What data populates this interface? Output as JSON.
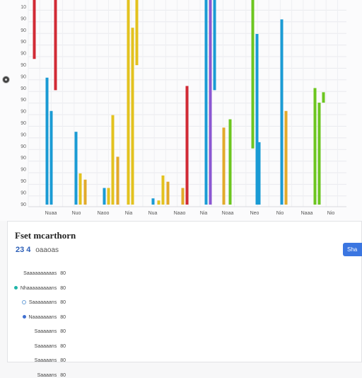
{
  "chart_data": {
    "type": "bar",
    "grid": true,
    "ylim": [
      0,
      10
    ],
    "ytick_labels": [
      "10",
      "90",
      "90",
      "90",
      "90",
      "90",
      "90",
      "90",
      "90",
      "90",
      "90",
      "90",
      "90",
      "90",
      "90",
      "90",
      "90",
      "90"
    ],
    "categories": [
      "Nuaa",
      "Nuo",
      "Naoo",
      "Nia",
      "Nua",
      "Naao",
      "Nia",
      "Noaa",
      "Neo",
      "Nio",
      "Naaa",
      "Nio"
    ],
    "bars": [
      {
        "x": 48.5,
        "top": 10,
        "bottom": 7.1,
        "color": "#d12a35"
      },
      {
        "x": 66.5,
        "top": 6.2,
        "bottom": 0.1,
        "color": "#1a9bd4"
      },
      {
        "x": 72.5,
        "top": 4.6,
        "bottom": 0.1,
        "color": "#1a9bd4"
      },
      {
        "x": 78.5,
        "top": 10,
        "bottom": 5.6,
        "color": "#d12a35"
      },
      {
        "x": 107.5,
        "top": 3.6,
        "bottom": 0.1,
        "color": "#1a9bd4"
      },
      {
        "x": 113.5,
        "top": 1.6,
        "bottom": 0.1,
        "color": "#e3c21e"
      },
      {
        "x": 120.5,
        "top": 1.3,
        "bottom": 0.1,
        "color": "#e2aa2a"
      },
      {
        "x": 147.5,
        "top": 0.9,
        "bottom": 0.1,
        "color": "#1a9bd4"
      },
      {
        "x": 153.5,
        "top": 0.9,
        "bottom": 0.1,
        "color": "#e3c21e"
      },
      {
        "x": 159.5,
        "top": 4.4,
        "bottom": 0.1,
        "color": "#e3c21e"
      },
      {
        "x": 166.5,
        "top": 2.4,
        "bottom": 0.1,
        "color": "#e2aa2a"
      },
      {
        "x": 181.5,
        "top": 10,
        "bottom": 0.1,
        "color": "#e3c21e"
      },
      {
        "x": 187.5,
        "top": 8.6,
        "bottom": 0.1,
        "color": "#e3c21e"
      },
      {
        "x": 193.5,
        "top": 10,
        "bottom": 6.8,
        "color": "#e3c21e"
      },
      {
        "x": 216.5,
        "top": 0.4,
        "bottom": 0.1,
        "color": "#1a9bd4"
      },
      {
        "x": 224.5,
        "top": 0.3,
        "bottom": 0.1,
        "color": "#e3c21e"
      },
      {
        "x": 230.5,
        "top": 1.5,
        "bottom": 0.1,
        "color": "#e3c21e"
      },
      {
        "x": 237.5,
        "top": 1.2,
        "bottom": 0.1,
        "color": "#e2aa2a"
      },
      {
        "x": 258.5,
        "top": 0.9,
        "bottom": 0.1,
        "color": "#e2aa2a"
      },
      {
        "x": 264.5,
        "top": 5.8,
        "bottom": 0.1,
        "color": "#d12a35"
      },
      {
        "x": 291.5,
        "top": 10,
        "bottom": 0.1,
        "color": "#1a9bd4"
      },
      {
        "x": 297.5,
        "top": 10,
        "bottom": 0.1,
        "color": "#8b57d2"
      },
      {
        "x": 303.5,
        "top": 10,
        "bottom": 5.6,
        "color": "#1a9bd4"
      },
      {
        "x": 316.5,
        "top": 3.8,
        "bottom": 0.1,
        "color": "#e2aa2a"
      },
      {
        "x": 325.5,
        "top": 4.2,
        "bottom": 0.1,
        "color": "#6cc620"
      },
      {
        "x": 357.5,
        "top": 10,
        "bottom": 2.8,
        "color": "#6cc620"
      },
      {
        "x": 363.5,
        "top": 8.3,
        "bottom": 0.1,
        "color": "#1a9bd4"
      },
      {
        "x": 366.5,
        "top": 3.1,
        "bottom": 0.1,
        "color": "#1a9bd4"
      },
      {
        "x": 398.5,
        "top": 9.0,
        "bottom": 0.1,
        "color": "#1a9bd4"
      },
      {
        "x": 404.5,
        "top": 4.6,
        "bottom": 0.1,
        "color": "#e2aa2a"
      },
      {
        "x": 445.5,
        "top": 5.7,
        "bottom": 0.1,
        "color": "#6cc620"
      },
      {
        "x": 451.5,
        "top": 5.0,
        "bottom": 0.1,
        "color": "#6cc620"
      },
      {
        "x": 457.5,
        "top": 5.5,
        "bottom": 5.0,
        "color": "#6cc620"
      }
    ]
  },
  "panel": {
    "title": "Fset mcarthorn",
    "summary_value": "23 4",
    "summary_label": "oaaoas",
    "button_label": "Sha",
    "legend": [
      {
        "label": "Saaaaaaaaaas",
        "value": "80",
        "dot": "none",
        "color": ""
      },
      {
        "label": "Nhaaaaaaaaans",
        "value": "80",
        "dot": "filled",
        "color": "#1fb5a8"
      },
      {
        "label": "Saaaaaaans",
        "value": "80",
        "dot": "ring",
        "color": "#6aa0d8"
      },
      {
        "label": "Naaaaaaans",
        "value": "80",
        "dot": "filled",
        "color": "#3f6fd0"
      },
      {
        "label": "Saaaaans",
        "value": "80",
        "dot": "none",
        "color": ""
      },
      {
        "label": "Saaaaans",
        "value": "80",
        "dot": "none",
        "color": ""
      },
      {
        "label": "Saaaaans",
        "value": "80",
        "dot": "none",
        "color": ""
      },
      {
        "label": "Saaaans",
        "value": "80",
        "dot": "none",
        "color": ""
      }
    ]
  }
}
